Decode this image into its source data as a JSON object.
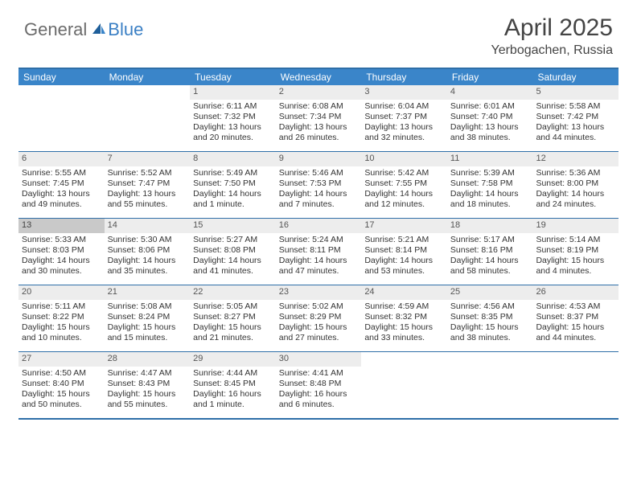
{
  "brand": {
    "part1": "General",
    "part2": "Blue"
  },
  "title": {
    "month": "April 2025",
    "location": "Yerbogachen, Russia"
  },
  "colors": {
    "header_bg": "#3a85c9",
    "border": "#2f6fa8",
    "daynum_bg": "#ededed",
    "daynum_hl_bg": "#c9c9c9",
    "text": "#333333",
    "logo_gray": "#6b6b6b",
    "logo_blue": "#3a7fc4"
  },
  "dayNames": [
    "Sunday",
    "Monday",
    "Tuesday",
    "Wednesday",
    "Thursday",
    "Friday",
    "Saturday"
  ],
  "weeks": [
    [
      {
        "blank": true
      },
      {
        "blank": true
      },
      {
        "n": "1",
        "sr": "6:11 AM",
        "ss": "7:32 PM",
        "dl": "13 hours and 20 minutes."
      },
      {
        "n": "2",
        "sr": "6:08 AM",
        "ss": "7:34 PM",
        "dl": "13 hours and 26 minutes."
      },
      {
        "n": "3",
        "sr": "6:04 AM",
        "ss": "7:37 PM",
        "dl": "13 hours and 32 minutes."
      },
      {
        "n": "4",
        "sr": "6:01 AM",
        "ss": "7:40 PM",
        "dl": "13 hours and 38 minutes."
      },
      {
        "n": "5",
        "sr": "5:58 AM",
        "ss": "7:42 PM",
        "dl": "13 hours and 44 minutes."
      }
    ],
    [
      {
        "n": "6",
        "sr": "5:55 AM",
        "ss": "7:45 PM",
        "dl": "13 hours and 49 minutes."
      },
      {
        "n": "7",
        "sr": "5:52 AM",
        "ss": "7:47 PM",
        "dl": "13 hours and 55 minutes."
      },
      {
        "n": "8",
        "sr": "5:49 AM",
        "ss": "7:50 PM",
        "dl": "14 hours and 1 minute."
      },
      {
        "n": "9",
        "sr": "5:46 AM",
        "ss": "7:53 PM",
        "dl": "14 hours and 7 minutes."
      },
      {
        "n": "10",
        "sr": "5:42 AM",
        "ss": "7:55 PM",
        "dl": "14 hours and 12 minutes."
      },
      {
        "n": "11",
        "sr": "5:39 AM",
        "ss": "7:58 PM",
        "dl": "14 hours and 18 minutes."
      },
      {
        "n": "12",
        "sr": "5:36 AM",
        "ss": "8:00 PM",
        "dl": "14 hours and 24 minutes."
      }
    ],
    [
      {
        "n": "13",
        "hl": true,
        "sr": "5:33 AM",
        "ss": "8:03 PM",
        "dl": "14 hours and 30 minutes."
      },
      {
        "n": "14",
        "sr": "5:30 AM",
        "ss": "8:06 PM",
        "dl": "14 hours and 35 minutes."
      },
      {
        "n": "15",
        "sr": "5:27 AM",
        "ss": "8:08 PM",
        "dl": "14 hours and 41 minutes."
      },
      {
        "n": "16",
        "sr": "5:24 AM",
        "ss": "8:11 PM",
        "dl": "14 hours and 47 minutes."
      },
      {
        "n": "17",
        "sr": "5:21 AM",
        "ss": "8:14 PM",
        "dl": "14 hours and 53 minutes."
      },
      {
        "n": "18",
        "sr": "5:17 AM",
        "ss": "8:16 PM",
        "dl": "14 hours and 58 minutes."
      },
      {
        "n": "19",
        "sr": "5:14 AM",
        "ss": "8:19 PM",
        "dl": "15 hours and 4 minutes."
      }
    ],
    [
      {
        "n": "20",
        "sr": "5:11 AM",
        "ss": "8:22 PM",
        "dl": "15 hours and 10 minutes."
      },
      {
        "n": "21",
        "sr": "5:08 AM",
        "ss": "8:24 PM",
        "dl": "15 hours and 15 minutes."
      },
      {
        "n": "22",
        "sr": "5:05 AM",
        "ss": "8:27 PM",
        "dl": "15 hours and 21 minutes."
      },
      {
        "n": "23",
        "sr": "5:02 AM",
        "ss": "8:29 PM",
        "dl": "15 hours and 27 minutes."
      },
      {
        "n": "24",
        "sr": "4:59 AM",
        "ss": "8:32 PM",
        "dl": "15 hours and 33 minutes."
      },
      {
        "n": "25",
        "sr": "4:56 AM",
        "ss": "8:35 PM",
        "dl": "15 hours and 38 minutes."
      },
      {
        "n": "26",
        "sr": "4:53 AM",
        "ss": "8:37 PM",
        "dl": "15 hours and 44 minutes."
      }
    ],
    [
      {
        "n": "27",
        "sr": "4:50 AM",
        "ss": "8:40 PM",
        "dl": "15 hours and 50 minutes."
      },
      {
        "n": "28",
        "sr": "4:47 AM",
        "ss": "8:43 PM",
        "dl": "15 hours and 55 minutes."
      },
      {
        "n": "29",
        "sr": "4:44 AM",
        "ss": "8:45 PM",
        "dl": "16 hours and 1 minute."
      },
      {
        "n": "30",
        "sr": "4:41 AM",
        "ss": "8:48 PM",
        "dl": "16 hours and 6 minutes."
      },
      {
        "blank": true
      },
      {
        "blank": true
      },
      {
        "blank": true
      }
    ]
  ],
  "labels": {
    "sunrise": "Sunrise: ",
    "sunset": "Sunset: ",
    "daylight": "Daylight: "
  }
}
